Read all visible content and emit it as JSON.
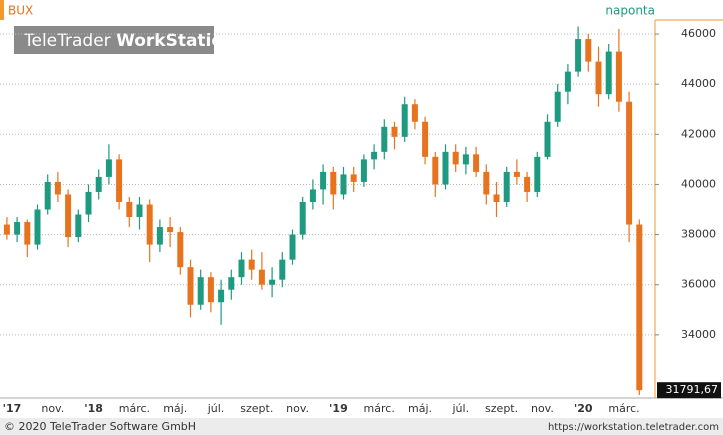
{
  "chart_data": {
    "type": "candlestick",
    "symbol": "BUX",
    "interval": "naponta",
    "watermark": [
      "TeleTrader",
      "WorkStation"
    ],
    "footer_left": "© 2020 TeleTrader Software GmbH",
    "footer_right": "https://workstation.teletrader.com",
    "up_color": "#1e9a80",
    "down_color": "#e8731f",
    "categories": [
      null,
      null,
      "'17",
      null,
      null,
      null,
      "nov.",
      null,
      null,
      null,
      "'18",
      null,
      null,
      null,
      "márc.",
      null,
      null,
      null,
      "máj.",
      null,
      null,
      null,
      "júl.",
      null,
      null,
      null,
      "szept.",
      null,
      null,
      null,
      "nov.",
      null,
      null,
      null,
      "'19",
      null,
      null,
      null,
      "márc.",
      null,
      null,
      null,
      "máj.",
      null,
      null,
      null,
      "júl.",
      null,
      null,
      null,
      "szept.",
      null,
      null,
      null,
      "nov.",
      null,
      null,
      null,
      "'20",
      null,
      null,
      null,
      "márc.",
      null
    ],
    "open": [
      38200,
      38400,
      38000,
      38500,
      37600,
      39000,
      40100,
      39600,
      37900,
      38800,
      39700,
      40300,
      41000,
      39300,
      38700,
      39200,
      37600,
      38300,
      38100,
      36700,
      35200,
      36300,
      35300,
      35800,
      36300,
      37000,
      36600,
      36000,
      36200,
      37000,
      38000,
      39300,
      39800,
      40500,
      39600,
      40400,
      40100,
      41000,
      41300,
      42300,
      41900,
      43200,
      42500,
      41100,
      40000,
      41300,
      40800,
      41200,
      40500,
      39600,
      39300,
      40500,
      40300,
      39700,
      41100,
      42500,
      43700,
      44500,
      45800,
      44900,
      43600,
      45300,
      43300,
      38400
    ],
    "high": [
      38600,
      38700,
      38700,
      38600,
      39200,
      40400,
      40500,
      39800,
      39000,
      40000,
      40600,
      41600,
      41200,
      39500,
      39500,
      39400,
      38600,
      38700,
      38300,
      37000,
      36600,
      36500,
      36200,
      36600,
      37300,
      37400,
      37300,
      36700,
      37300,
      38200,
      39500,
      40200,
      40800,
      40700,
      40700,
      40700,
      41200,
      41600,
      42600,
      42500,
      43500,
      43400,
      42700,
      41300,
      41600,
      41600,
      41500,
      41500,
      40800,
      40100,
      40700,
      41000,
      40500,
      41300,
      42800,
      44000,
      44800,
      46300,
      46000,
      45500,
      45600,
      46200,
      43700,
      38600
    ],
    "low": [
      37900,
      37800,
      37700,
      37100,
      37400,
      38800,
      39300,
      37500,
      37700,
      38500,
      39400,
      40000,
      39000,
      38300,
      38200,
      36900,
      37300,
      37500,
      36400,
      34700,
      35000,
      34900,
      34400,
      35400,
      36000,
      36200,
      35800,
      35500,
      35900,
      36800,
      37800,
      39000,
      39200,
      39000,
      39400,
      39700,
      39900,
      40600,
      41000,
      41400,
      41700,
      42200,
      40800,
      39500,
      39800,
      40500,
      40400,
      40300,
      39200,
      38700,
      39100,
      40000,
      39300,
      39500,
      41000,
      42300,
      43200,
      44300,
      44500,
      43100,
      43400,
      42900,
      37700,
      31600
    ],
    "close": [
      38400,
      38000,
      38500,
      37600,
      39000,
      40100,
      39600,
      37900,
      38800,
      39700,
      40300,
      41000,
      39300,
      38700,
      39200,
      37600,
      38300,
      38100,
      36700,
      35200,
      36300,
      35300,
      35800,
      36300,
      37000,
      36600,
      36000,
      36200,
      37000,
      38000,
      39300,
      39800,
      40500,
      39600,
      40400,
      40100,
      41000,
      41300,
      42300,
      41900,
      43200,
      42500,
      41100,
      40000,
      41300,
      40800,
      41200,
      40500,
      39600,
      39300,
      40500,
      40300,
      39700,
      41100,
      42500,
      43700,
      44500,
      45800,
      44900,
      43600,
      45300,
      43300,
      38400,
      31791.67
    ],
    "last_price": {
      "value": 31791.67,
      "label": "31791,67"
    },
    "ylim": [
      31600,
      46560
    ],
    "yticks": [
      34000,
      36000,
      38000,
      40000,
      42000,
      44000,
      46000
    ],
    "grid": true
  }
}
